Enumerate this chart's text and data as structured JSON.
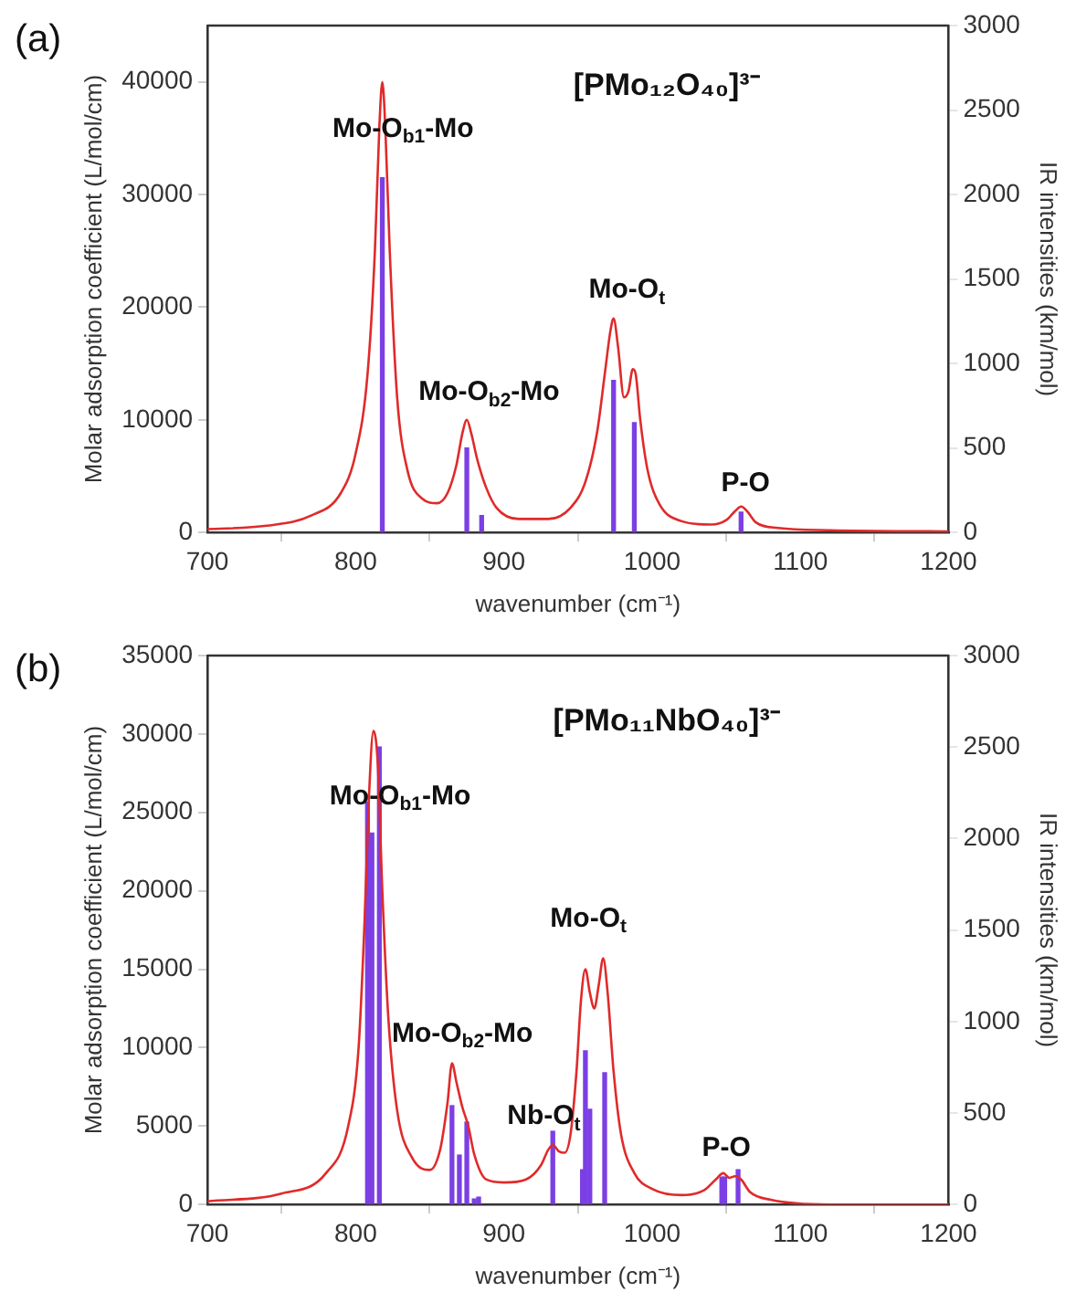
{
  "chart_data": [
    {
      "type": "line",
      "title": "[PMo₁₂O₄₀]³⁻",
      "xlabel": "wavenumber (cm⁻¹)",
      "ylabel": "Molar adsorption coefficient (L/mol/cm)",
      "y2label": "IR intensities (km/mol)",
      "xlim": [
        700,
        1200
      ],
      "xticks": [
        700,
        800,
        900,
        1000,
        1100,
        1200
      ],
      "ylim": [
        0,
        45000
      ],
      "yticks": [
        0,
        10000,
        20000,
        30000,
        40000
      ],
      "y2lim": [
        0,
        3000
      ],
      "y2ticks": [
        0,
        500,
        1000,
        1500,
        2000,
        2500,
        3000
      ],
      "annotations": [
        "(a)",
        "Mo-O$_{b1}$-Mo",
        "Mo-O$_{b2}$-Mo",
        "Mo-O$_{t}$",
        "P-O"
      ],
      "series": [
        {
          "color": "#e02a2a",
          "x": [
            700,
            740,
            770,
            790,
            800,
            808,
            813,
            816,
            818,
            820,
            823,
            828,
            835,
            845,
            855,
            862,
            868,
            872,
            875,
            878,
            882,
            888,
            895,
            910,
            930,
            945,
            955,
            963,
            968,
            972,
            974,
            977,
            981,
            984,
            987,
            989,
            992,
            997,
            1005,
            1020,
            1040,
            1050,
            1056,
            1060,
            1064,
            1070,
            1085,
            1120,
            1200
          ],
          "values": [
            300,
            600,
            1500,
            3500,
            7000,
            14000,
            25000,
            36000,
            40000,
            36000,
            25000,
            12000,
            5500,
            3000,
            2600,
            3500,
            6000,
            8800,
            10000,
            8800,
            6500,
            4000,
            2200,
            1200,
            1200,
            2200,
            4500,
            9000,
            14000,
            18000,
            19000,
            16500,
            12000,
            12500,
            14500,
            14000,
            10000,
            5500,
            2500,
            1000,
            700,
            1100,
            1900,
            2300,
            1900,
            900,
            400,
            200,
            100
          ]
        },
        {
          "type": "bar",
          "axis": "y2",
          "color": "#7b3fe4",
          "x": [
            818,
            875,
            885,
            974,
            988,
            1060
          ],
          "values": [
            2100,
            500,
            100,
            900,
            650,
            120
          ]
        }
      ]
    },
    {
      "type": "line",
      "title": "[PMo₁₁NbO₄₀]³⁻",
      "xlabel": "wavenumber (cm⁻¹)",
      "ylabel": "Molar adsorption coefficient (L/mol/cm)",
      "y2label": "IR intensities (km/mol)",
      "xlim": [
        700,
        1200
      ],
      "xticks": [
        700,
        800,
        900,
        1000,
        1100,
        1200
      ],
      "ylim": [
        0,
        35000
      ],
      "yticks": [
        0,
        5000,
        10000,
        15000,
        20000,
        25000,
        30000,
        35000
      ],
      "y2lim": [
        0,
        3000
      ],
      "y2ticks": [
        0,
        500,
        1000,
        1500,
        2000,
        2500,
        3000
      ],
      "annotations": [
        "(b)",
        "Mo-O$_{b1}$-Mo",
        "Mo-O$_{b2}$-Mo",
        "Nb-O$_{t}$",
        "Mo-O$_{t}$",
        "P-O"
      ],
      "series": [
        {
          "color": "#e02a2a",
          "x": [
            700,
            750,
            780,
            795,
            802,
            806,
            809,
            812,
            815,
            818,
            822,
            828,
            838,
            850,
            857,
            862,
            865,
            868,
            872,
            876,
            880,
            888,
            900,
            915,
            925,
            930,
            933,
            937,
            941,
            945,
            949,
            952,
            955,
            958,
            961,
            964,
            967,
            970,
            974,
            979,
            988,
            1000,
            1020,
            1035,
            1043,
            1048,
            1052,
            1056,
            1060,
            1066,
            1080,
            1120,
            1200
          ],
          "values": [
            200,
            700,
            2000,
            5000,
            10000,
            18000,
            26000,
            30200,
            28000,
            20000,
            12000,
            6000,
            3000,
            2200,
            3500,
            6500,
            9000,
            7800,
            6200,
            5000,
            3200,
            1600,
            1400,
            1600,
            2500,
            3500,
            3800,
            3400,
            3300,
            4500,
            8500,
            13000,
            15000,
            13500,
            12500,
            14000,
            15700,
            13500,
            8500,
            4500,
            2000,
            1000,
            600,
            900,
            1600,
            2000,
            1700,
            1800,
            1600,
            800,
            300,
            0,
            0
          ]
        },
        {
          "type": "bar",
          "axis": "y2",
          "color": "#7b3fe4",
          "x": [
            808,
            811,
            816,
            865,
            870,
            875,
            880,
            883,
            933,
            953,
            955,
            958,
            968,
            1047,
            1049,
            1058
          ],
          "values": [
            2200,
            2030,
            2500,
            540,
            270,
            450,
            30,
            40,
            400,
            190,
            840,
            520,
            720,
            150,
            150,
            190
          ]
        }
      ]
    }
  ]
}
